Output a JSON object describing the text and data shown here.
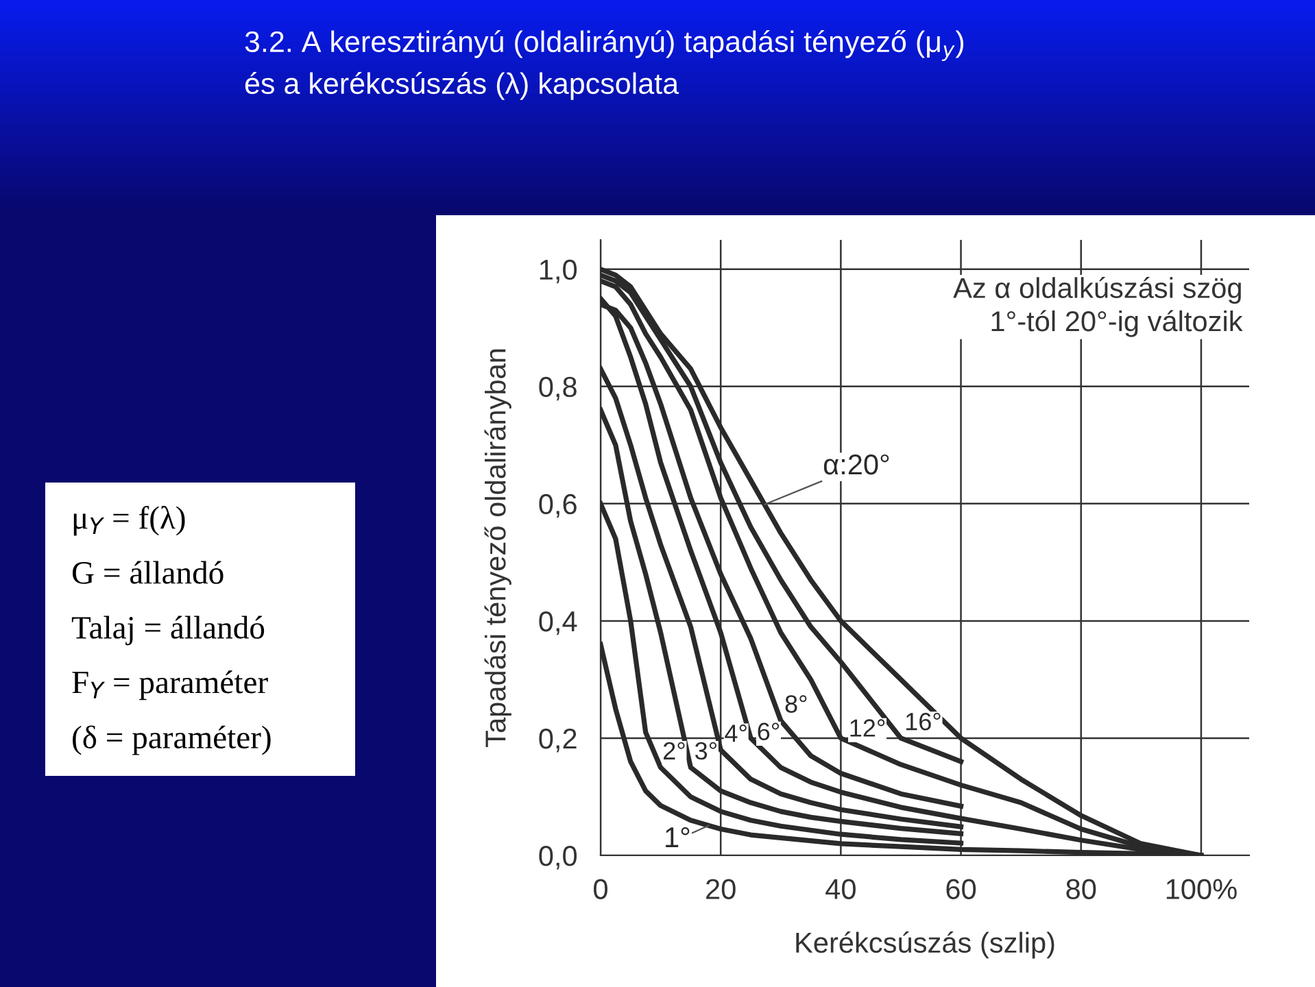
{
  "chart_data": {
    "type": "line",
    "title": "3.2. A keresztirányú (oldalirányú) tapadási tényező (μ$_{y}$)\nés a kerékcsúszás (λ) kapcsolata",
    "xlabel": "Kerékcsúszás (szlip)",
    "ylabel": "Tapadási tényező oldalirányban",
    "annotations": [
      "Az α oldalkúszási szög\n1°-tól 20°-ig változik",
      "μ$_{Y}$ = f(λ)",
      "G = állandó",
      "Talaj = állandó",
      "F$_{Y}$ = paraméter",
      "(δ = paraméter)"
    ],
    "x": [
      0,
      2.5,
      5,
      7.5,
      10,
      15,
      20,
      25,
      30,
      35,
      40,
      50,
      60,
      70,
      80,
      90,
      100
    ],
    "series": [
      {
        "name": "α:20°",
        "color": "#2a2a2a",
        "values": [
          1.0,
          0.99,
          0.97,
          0.93,
          0.89,
          0.83,
          0.73,
          0.64,
          0.55,
          0.47,
          0.4,
          0.3,
          0.2,
          0.13,
          0.068,
          0.02,
          0.0
        ]
      },
      {
        "name": "16°",
        "color": "#2a2a2a",
        "values": [
          0.99,
          0.98,
          0.96,
          0.92,
          0.88,
          0.8,
          0.67,
          0.56,
          0.47,
          0.39,
          0.33,
          0.2,
          0.16,
          null,
          null,
          null,
          null
        ]
      },
      {
        "name": "12°",
        "color": "#2a2a2a",
        "values": [
          0.98,
          0.97,
          0.94,
          0.89,
          0.85,
          0.76,
          0.61,
          0.49,
          0.38,
          0.3,
          0.2,
          0.155,
          0.12,
          0.09,
          0.045,
          0.015,
          0.0
        ]
      },
      {
        "name": "8°",
        "color": "#2a2a2a",
        "values": [
          0.94,
          0.93,
          0.9,
          0.84,
          0.77,
          0.61,
          0.48,
          0.37,
          0.23,
          0.17,
          0.14,
          0.105,
          0.084,
          null,
          null,
          null,
          null
        ]
      },
      {
        "name": "6°",
        "color": "#2a2a2a",
        "values": [
          0.95,
          0.92,
          0.85,
          0.77,
          0.67,
          0.52,
          0.38,
          0.2,
          0.15,
          0.125,
          0.108,
          0.082,
          0.063,
          0.045,
          0.026,
          0.01,
          0.0
        ]
      },
      {
        "name": "4°",
        "color": "#2a2a2a",
        "values": [
          0.83,
          0.78,
          0.7,
          0.61,
          0.53,
          0.39,
          0.18,
          0.13,
          0.105,
          0.09,
          0.078,
          0.062,
          0.049,
          null,
          null,
          null,
          null
        ]
      },
      {
        "name": "3°",
        "color": "#2a2a2a",
        "values": [
          0.76,
          0.7,
          0.57,
          0.48,
          0.38,
          0.15,
          0.11,
          0.09,
          0.075,
          0.065,
          0.058,
          0.046,
          0.037,
          null,
          null,
          null,
          null
        ]
      },
      {
        "name": "2°",
        "color": "#2a2a2a",
        "values": [
          0.6,
          0.54,
          0.4,
          0.21,
          0.15,
          0.1,
          0.075,
          0.06,
          0.05,
          0.043,
          0.036,
          0.027,
          0.021,
          null,
          null,
          null,
          null
        ]
      },
      {
        "name": "1°",
        "color": "#2a2a2a",
        "values": [
          0.36,
          0.25,
          0.16,
          0.11,
          0.085,
          0.06,
          0.045,
          0.035,
          0.03,
          0.025,
          0.02,
          0.015,
          0.01,
          0.008,
          0.005,
          0.003,
          0.0
        ]
      }
    ],
    "xlim": [
      0,
      108
    ],
    "ylim": [
      0,
      1.05
    ],
    "xticks": [
      0,
      20,
      40,
      60,
      80,
      {
        "value": 100,
        "label": "100%"
      }
    ],
    "yticks": [
      {
        "value": 0,
        "label": "0,0"
      },
      {
        "value": 0.2,
        "label": "0,2"
      },
      {
        "value": 0.4,
        "label": "0,4"
      },
      {
        "value": 0.6,
        "label": "0,6"
      },
      {
        "value": 0.8,
        "label": "0,8"
      },
      {
        "value": 1.0,
        "label": "1,0"
      }
    ],
    "grid": true,
    "legend": false,
    "marker": "none",
    "line_style": "solid"
  }
}
